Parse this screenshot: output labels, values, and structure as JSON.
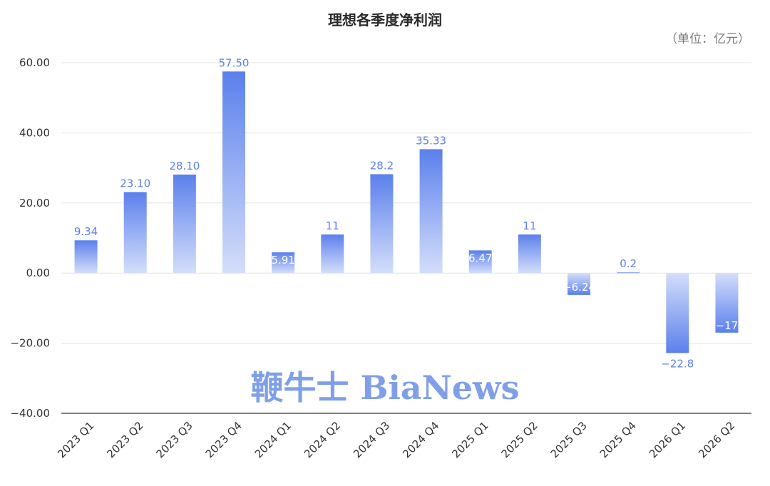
{
  "title": "理想各季度净利润",
  "unit": "（单位：亿元）",
  "watermark": "鞭牛士 BiaNews",
  "colors": {
    "bar_strong": "#5b80ec",
    "bar_light": "#d4defa",
    "value_label": "#5b80ec",
    "value_label_inside": "#ffffff",
    "grid": "#e3e3e3",
    "axis": "#333333",
    "watermark": "#7f9fe8"
  },
  "chart_data": {
    "type": "bar",
    "title": "理想各季度净利润",
    "unit": "（单位：亿元）",
    "categories": [
      "2023 Q1",
      "2023 Q2",
      "2023 Q3",
      "2023 Q4",
      "2024 Q1",
      "2024 Q2",
      "2024 Q3",
      "2024 Q4",
      "2025 Q1",
      "2025 Q2",
      "2025 Q3",
      "2025 Q4",
      "2026 Q1",
      "2026 Q2"
    ],
    "values": [
      9.34,
      23.1,
      28.1,
      57.5,
      5.91,
      11,
      28.2,
      35.33,
      6.47,
      11,
      -6.24,
      0.2,
      -22.8,
      -17
    ],
    "value_labels": [
      "9.34",
      "23.10",
      "28.10",
      "57.50",
      "5.91",
      "11",
      "28.2",
      "35.33",
      "6.47",
      "11",
      "−6.24",
      "0.2",
      "−22.8",
      "−17"
    ],
    "y_ticks": [
      "60.00",
      "40.00",
      "20.00",
      "0.00",
      "−20.00",
      "−40.00"
    ],
    "ylim": [
      -40,
      60
    ],
    "grid": true
  }
}
